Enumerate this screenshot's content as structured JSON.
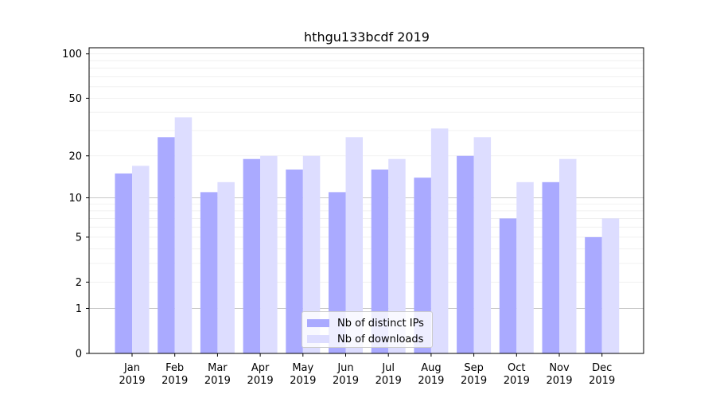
{
  "chart_data": {
    "type": "bar",
    "title": "hthgu133bcdf 2019",
    "xlabel": "",
    "ylabel": "",
    "categories": [
      [
        "Jan",
        "2019"
      ],
      [
        "Feb",
        "2019"
      ],
      [
        "Mar",
        "2019"
      ],
      [
        "Apr",
        "2019"
      ],
      [
        "May",
        "2019"
      ],
      [
        "Jun",
        "2019"
      ],
      [
        "Jul",
        "2019"
      ],
      [
        "Aug",
        "2019"
      ],
      [
        "Sep",
        "2019"
      ],
      [
        "Oct",
        "2019"
      ],
      [
        "Nov",
        "2019"
      ],
      [
        "Dec",
        "2019"
      ]
    ],
    "series": [
      {
        "name": "Nb of distinct IPs",
        "color": "#aaaaff",
        "values": [
          15,
          27,
          11,
          19,
          16,
          11,
          16,
          14,
          20,
          7,
          13,
          5
        ]
      },
      {
        "name": "Nb of downloads",
        "color": "#ddddff",
        "values": [
          17,
          37,
          13,
          20,
          20,
          27,
          19,
          31,
          27,
          13,
          19,
          7
        ]
      }
    ],
    "y_scale": "symlog",
    "ylim": [
      0,
      110
    ],
    "yticks": [
      0,
      1,
      2,
      5,
      10,
      20,
      50,
      100
    ],
    "grid": true,
    "legend_position": "lower-center"
  }
}
